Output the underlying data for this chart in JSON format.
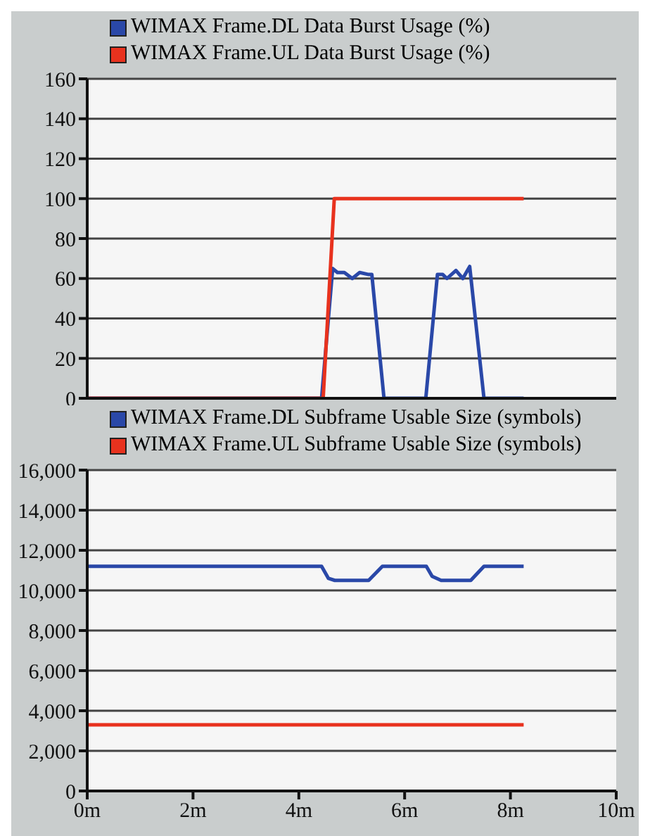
{
  "chart_data": [
    {
      "type": "line",
      "legend": "top",
      "grid": "y",
      "marker": "none",
      "line_style": "solid",
      "tick_labels": "y",
      "xlim": [
        0,
        10
      ],
      "ylim": [
        0,
        160
      ],
      "yticks": [
        0,
        20,
        40,
        60,
        80,
        100,
        120,
        140,
        160
      ],
      "series": [
        {
          "name": "WIMAX Frame.DL Data Burst Usage (%)",
          "color": "#2a48a8",
          "x": [
            0,
            4.43,
            4.64,
            4.73,
            4.86,
            5.01,
            5.15,
            5.32,
            5.38,
            5.61,
            6.4,
            6.62,
            6.72,
            6.8,
            6.97,
            7.1,
            7.23,
            7.5,
            8.25
          ],
          "values": [
            0,
            0,
            65,
            63,
            63,
            60,
            63,
            62,
            62,
            0,
            0,
            62,
            62,
            60,
            64,
            60,
            66,
            0,
            0
          ]
        },
        {
          "name": "WIMAX Frame.UL Data Burst Usage (%)",
          "color": "#e8321e",
          "x": [
            0,
            4.46,
            4.67,
            8.25
          ],
          "values": [
            0,
            0,
            100,
            100
          ]
        }
      ]
    },
    {
      "type": "line",
      "legend": "top",
      "grid": "y",
      "marker": "none",
      "line_style": "solid",
      "xlim": [
        0,
        10
      ],
      "xticks": [
        {
          "value": 0,
          "label": "0m"
        },
        {
          "value": 2,
          "label": "2m"
        },
        {
          "value": 4,
          "label": "4m"
        },
        {
          "value": 6,
          "label": "6m"
        },
        {
          "value": 8,
          "label": "8m"
        },
        {
          "value": 10,
          "label": "10m"
        }
      ],
      "ylim": [
        0,
        16000
      ],
      "yticks": [
        {
          "value": 0,
          "label": "0"
        },
        {
          "value": 2000,
          "label": "2,000"
        },
        {
          "value": 4000,
          "label": "4,000"
        },
        {
          "value": 6000,
          "label": "6,000"
        },
        {
          "value": 8000,
          "label": "8,000"
        },
        {
          "value": 10000,
          "label": "10,000"
        },
        {
          "value": 12000,
          "label": "12,000"
        },
        {
          "value": 14000,
          "label": "14,000"
        },
        {
          "value": 16000,
          "label": "16,000"
        }
      ],
      "series": [
        {
          "name": "WIMAX Frame.DL Subframe Usable Size (symbols)",
          "color": "#2a48a8",
          "x": [
            0,
            4.43,
            4.56,
            4.68,
            5.32,
            5.58,
            6.41,
            6.52,
            6.69,
            7.25,
            7.5,
            8.25
          ],
          "values": [
            11200,
            11200,
            10600,
            10500,
            10500,
            11200,
            11200,
            10700,
            10500,
            10500,
            11200,
            11200
          ]
        },
        {
          "name": "WIMAX Frame.UL Subframe Usable Size (symbols)",
          "color": "#e8321e",
          "x": [
            0,
            8.25
          ],
          "values": [
            3300,
            3300
          ]
        }
      ]
    }
  ]
}
